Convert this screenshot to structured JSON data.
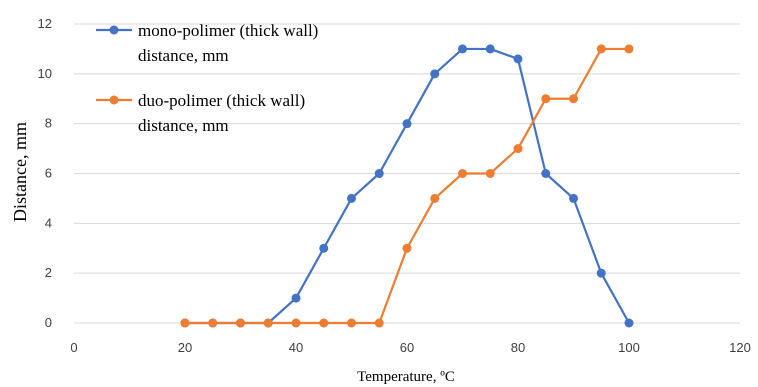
{
  "chart_data": {
    "type": "line",
    "xlabel": "Temperature, ºC",
    "ylabel": "Distance, mm",
    "xlim": [
      0,
      120
    ],
    "ylim": [
      0,
      12
    ],
    "xticks": [
      0,
      20,
      40,
      60,
      80,
      100,
      120
    ],
    "yticks": [
      0,
      2,
      4,
      6,
      8,
      10,
      12
    ],
    "grid": "horizontal",
    "legend_position": "top-left",
    "series": [
      {
        "name": "mono-polimer (thick wall) distance, mm",
        "name_lines": [
          "mono-polimer (thick wall)",
          "distance, mm"
        ],
        "color": "#4472C4",
        "marker": "circle",
        "x": [
          20,
          25,
          30,
          35,
          40,
          45,
          50,
          55,
          60,
          65,
          70,
          75,
          80,
          85,
          90,
          95,
          100
        ],
        "y": [
          0,
          0,
          0,
          0,
          1,
          3,
          5,
          6,
          8,
          10,
          11,
          11,
          10.6,
          6,
          5,
          2,
          0
        ]
      },
      {
        "name": "duo-polimer (thick wall) distance, mm",
        "name_lines": [
          "duo-polimer (thick wall)",
          "distance, mm"
        ],
        "color": "#ED7D31",
        "marker": "circle",
        "x": [
          20,
          25,
          30,
          35,
          40,
          45,
          50,
          55,
          60,
          65,
          70,
          75,
          80,
          85,
          90,
          95,
          100
        ],
        "y": [
          0,
          0,
          0,
          0,
          0,
          0,
          0,
          0,
          3,
          5,
          6,
          6,
          7,
          9,
          9,
          11,
          11
        ]
      }
    ],
    "gridline_color": "#d9d9d9"
  }
}
